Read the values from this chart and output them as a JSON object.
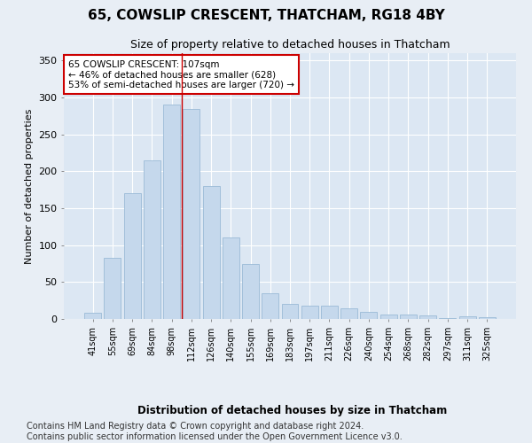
{
  "title": "65, COWSLIP CRESCENT, THATCHAM, RG18 4BY",
  "subtitle": "Size of property relative to detached houses in Thatcham",
  "xlabel_bottom": "Distribution of detached houses by size in Thatcham",
  "ylabel": "Number of detached properties",
  "categories": [
    "41sqm",
    "55sqm",
    "69sqm",
    "84sqm",
    "98sqm",
    "112sqm",
    "126sqm",
    "140sqm",
    "155sqm",
    "169sqm",
    "183sqm",
    "197sqm",
    "211sqm",
    "226sqm",
    "240sqm",
    "254sqm",
    "268sqm",
    "282sqm",
    "297sqm",
    "311sqm",
    "325sqm"
  ],
  "values": [
    8,
    83,
    170,
    215,
    290,
    285,
    180,
    110,
    75,
    35,
    20,
    18,
    18,
    15,
    10,
    6,
    6,
    5,
    1,
    4,
    2
  ],
  "bar_color": "#c5d8ec",
  "bar_edge_color": "#9bbbd6",
  "vline_x_index": 4.5,
  "vline_color": "#cc0000",
  "annotation_text": "65 COWSLIP CRESCENT: 107sqm\n← 46% of detached houses are smaller (628)\n53% of semi-detached houses are larger (720) →",
  "annotation_box_color": "#ffffff",
  "annotation_box_edge_color": "#cc0000",
  "annotation_fontsize": 7.5,
  "ylim": [
    0,
    360
  ],
  "yticks": [
    0,
    50,
    100,
    150,
    200,
    250,
    300,
    350
  ],
  "bg_color": "#e8eef5",
  "plot_bg_color": "#dce7f3",
  "grid_color": "#ffffff",
  "title_fontsize": 11,
  "subtitle_fontsize": 9,
  "footer_text": "Contains HM Land Registry data © Crown copyright and database right 2024.\nContains public sector information licensed under the Open Government Licence v3.0.",
  "footer_fontsize": 7
}
